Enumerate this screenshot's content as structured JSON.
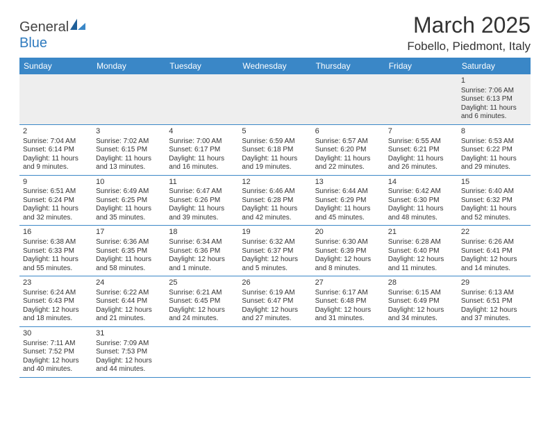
{
  "brand": {
    "part1": "General",
    "part2": "Blue"
  },
  "title": "March 2025",
  "location": "Fobello, Piedmont, Italy",
  "colors": {
    "header_bg": "#3a87c7",
    "header_border": "#3a87c7",
    "brand_blue": "#2f7bbf",
    "blank_bg": "#eeeeee",
    "text": "#333333",
    "page_bg": "#ffffff"
  },
  "typography": {
    "title_fontsize": 32,
    "location_fontsize": 17,
    "dow_fontsize": 12,
    "cell_fontsize": 10,
    "daynum_fontsize": 11
  },
  "dow": [
    "Sunday",
    "Monday",
    "Tuesday",
    "Wednesday",
    "Thursday",
    "Friday",
    "Saturday"
  ],
  "weeks": [
    [
      {
        "blank": true
      },
      {
        "blank": true
      },
      {
        "blank": true
      },
      {
        "blank": true
      },
      {
        "blank": true
      },
      {
        "blank": true
      },
      {
        "day": "1",
        "sunrise": "Sunrise: 7:06 AM",
        "sunset": "Sunset: 6:13 PM",
        "daylight": "Daylight: 11 hours and 6 minutes."
      }
    ],
    [
      {
        "day": "2",
        "sunrise": "Sunrise: 7:04 AM",
        "sunset": "Sunset: 6:14 PM",
        "daylight": "Daylight: 11 hours and 9 minutes."
      },
      {
        "day": "3",
        "sunrise": "Sunrise: 7:02 AM",
        "sunset": "Sunset: 6:15 PM",
        "daylight": "Daylight: 11 hours and 13 minutes."
      },
      {
        "day": "4",
        "sunrise": "Sunrise: 7:00 AM",
        "sunset": "Sunset: 6:17 PM",
        "daylight": "Daylight: 11 hours and 16 minutes."
      },
      {
        "day": "5",
        "sunrise": "Sunrise: 6:59 AM",
        "sunset": "Sunset: 6:18 PM",
        "daylight": "Daylight: 11 hours and 19 minutes."
      },
      {
        "day": "6",
        "sunrise": "Sunrise: 6:57 AM",
        "sunset": "Sunset: 6:20 PM",
        "daylight": "Daylight: 11 hours and 22 minutes."
      },
      {
        "day": "7",
        "sunrise": "Sunrise: 6:55 AM",
        "sunset": "Sunset: 6:21 PM",
        "daylight": "Daylight: 11 hours and 26 minutes."
      },
      {
        "day": "8",
        "sunrise": "Sunrise: 6:53 AM",
        "sunset": "Sunset: 6:22 PM",
        "daylight": "Daylight: 11 hours and 29 minutes."
      }
    ],
    [
      {
        "day": "9",
        "sunrise": "Sunrise: 6:51 AM",
        "sunset": "Sunset: 6:24 PM",
        "daylight": "Daylight: 11 hours and 32 minutes."
      },
      {
        "day": "10",
        "sunrise": "Sunrise: 6:49 AM",
        "sunset": "Sunset: 6:25 PM",
        "daylight": "Daylight: 11 hours and 35 minutes."
      },
      {
        "day": "11",
        "sunrise": "Sunrise: 6:47 AM",
        "sunset": "Sunset: 6:26 PM",
        "daylight": "Daylight: 11 hours and 39 minutes."
      },
      {
        "day": "12",
        "sunrise": "Sunrise: 6:46 AM",
        "sunset": "Sunset: 6:28 PM",
        "daylight": "Daylight: 11 hours and 42 minutes."
      },
      {
        "day": "13",
        "sunrise": "Sunrise: 6:44 AM",
        "sunset": "Sunset: 6:29 PM",
        "daylight": "Daylight: 11 hours and 45 minutes."
      },
      {
        "day": "14",
        "sunrise": "Sunrise: 6:42 AM",
        "sunset": "Sunset: 6:30 PM",
        "daylight": "Daylight: 11 hours and 48 minutes."
      },
      {
        "day": "15",
        "sunrise": "Sunrise: 6:40 AM",
        "sunset": "Sunset: 6:32 PM",
        "daylight": "Daylight: 11 hours and 52 minutes."
      }
    ],
    [
      {
        "day": "16",
        "sunrise": "Sunrise: 6:38 AM",
        "sunset": "Sunset: 6:33 PM",
        "daylight": "Daylight: 11 hours and 55 minutes."
      },
      {
        "day": "17",
        "sunrise": "Sunrise: 6:36 AM",
        "sunset": "Sunset: 6:35 PM",
        "daylight": "Daylight: 11 hours and 58 minutes."
      },
      {
        "day": "18",
        "sunrise": "Sunrise: 6:34 AM",
        "sunset": "Sunset: 6:36 PM",
        "daylight": "Daylight: 12 hours and 1 minute."
      },
      {
        "day": "19",
        "sunrise": "Sunrise: 6:32 AM",
        "sunset": "Sunset: 6:37 PM",
        "daylight": "Daylight: 12 hours and 5 minutes."
      },
      {
        "day": "20",
        "sunrise": "Sunrise: 6:30 AM",
        "sunset": "Sunset: 6:39 PM",
        "daylight": "Daylight: 12 hours and 8 minutes."
      },
      {
        "day": "21",
        "sunrise": "Sunrise: 6:28 AM",
        "sunset": "Sunset: 6:40 PM",
        "daylight": "Daylight: 12 hours and 11 minutes."
      },
      {
        "day": "22",
        "sunrise": "Sunrise: 6:26 AM",
        "sunset": "Sunset: 6:41 PM",
        "daylight": "Daylight: 12 hours and 14 minutes."
      }
    ],
    [
      {
        "day": "23",
        "sunrise": "Sunrise: 6:24 AM",
        "sunset": "Sunset: 6:43 PM",
        "daylight": "Daylight: 12 hours and 18 minutes."
      },
      {
        "day": "24",
        "sunrise": "Sunrise: 6:22 AM",
        "sunset": "Sunset: 6:44 PM",
        "daylight": "Daylight: 12 hours and 21 minutes."
      },
      {
        "day": "25",
        "sunrise": "Sunrise: 6:21 AM",
        "sunset": "Sunset: 6:45 PM",
        "daylight": "Daylight: 12 hours and 24 minutes."
      },
      {
        "day": "26",
        "sunrise": "Sunrise: 6:19 AM",
        "sunset": "Sunset: 6:47 PM",
        "daylight": "Daylight: 12 hours and 27 minutes."
      },
      {
        "day": "27",
        "sunrise": "Sunrise: 6:17 AM",
        "sunset": "Sunset: 6:48 PM",
        "daylight": "Daylight: 12 hours and 31 minutes."
      },
      {
        "day": "28",
        "sunrise": "Sunrise: 6:15 AM",
        "sunset": "Sunset: 6:49 PM",
        "daylight": "Daylight: 12 hours and 34 minutes."
      },
      {
        "day": "29",
        "sunrise": "Sunrise: 6:13 AM",
        "sunset": "Sunset: 6:51 PM",
        "daylight": "Daylight: 12 hours and 37 minutes."
      }
    ],
    [
      {
        "day": "30",
        "sunrise": "Sunrise: 7:11 AM",
        "sunset": "Sunset: 7:52 PM",
        "daylight": "Daylight: 12 hours and 40 minutes."
      },
      {
        "day": "31",
        "sunrise": "Sunrise: 7:09 AM",
        "sunset": "Sunset: 7:53 PM",
        "daylight": "Daylight: 12 hours and 44 minutes."
      },
      {
        "blank": true
      },
      {
        "blank": true
      },
      {
        "blank": true
      },
      {
        "blank": true
      },
      {
        "blank": true
      }
    ]
  ]
}
